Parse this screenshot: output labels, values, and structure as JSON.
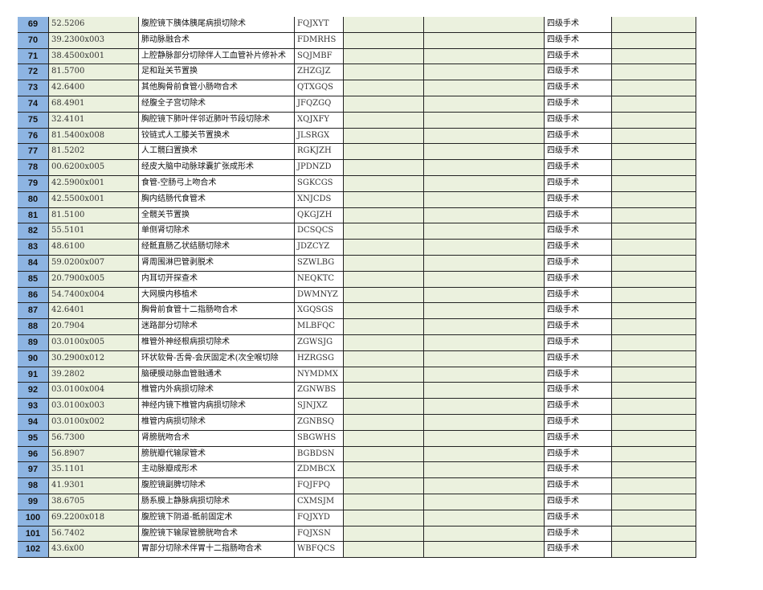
{
  "table": {
    "rows": [
      [
        "69",
        "52.5206",
        "腹腔镜下胰体胰尾病损切除术",
        "FQJXYT",
        "四级手术"
      ],
      [
        "70",
        "39.2300x003",
        "肺动脉融合术",
        "FDMRHS",
        "四级手术"
      ],
      [
        "71",
        "38.4500x001",
        "上腔静脉部分切除伴人工血管补片修补术",
        "SQJMBF",
        "四级手术"
      ],
      [
        "72",
        "81.5700",
        "足和趾关节置换",
        "ZHZGJZ",
        "四级手术"
      ],
      [
        "73",
        "42.6400",
        "其他胸骨前食管小肠吻合术",
        "QTXGQS",
        "四级手术"
      ],
      [
        "74",
        "68.4901",
        "经腹全子宫切除术",
        "JFQZGQ",
        "四级手术"
      ],
      [
        "75",
        "32.4101",
        "胸腔镜下肺叶伴邻近肺叶节段切除术",
        "XQJXFY",
        "四级手术"
      ],
      [
        "76",
        "81.5400x008",
        "铰链式人工膝关节置换术",
        "JLSRGX",
        "四级手术"
      ],
      [
        "77",
        "81.5202",
        "人工髋臼置换术",
        "RGKJZH",
        "四级手术"
      ],
      [
        "78",
        "00.6200x005",
        "经皮大脑中动脉球囊扩张成形术",
        "JPDNZD",
        "四级手术"
      ],
      [
        "79",
        "42.5900x001",
        "食管-空肠弓上吻合术",
        "SGKCGS",
        "四级手术"
      ],
      [
        "80",
        "42.5500x001",
        "胸内结肠代食管术",
        "XNJCDS",
        "四级手术"
      ],
      [
        "81",
        "81.5100",
        "全髋关节置换",
        "QKGJZH",
        "四级手术"
      ],
      [
        "82",
        "55.5101",
        "单侧肾切除术",
        "DCSQCS",
        "四级手术"
      ],
      [
        "83",
        "48.6100",
        "经骶直肠乙状结肠切除术",
        "JDZCYZ",
        "四级手术"
      ],
      [
        "84",
        "59.0200x007",
        "肾周围淋巴管剥脱术",
        "SZWLBG",
        "四级手术"
      ],
      [
        "85",
        "20.7900x005",
        "内耳切开探查术",
        "NEQKTC",
        "四级手术"
      ],
      [
        "86",
        "54.7400x004",
        "大网膜内移植术",
        "DWMNYZ",
        "四级手术"
      ],
      [
        "87",
        "42.6401",
        "胸骨前食管十二指肠吻合术",
        "XGQSGS",
        "四级手术"
      ],
      [
        "88",
        "20.7904",
        "迷路部分切除术",
        "MLBFQC",
        "四级手术"
      ],
      [
        "89",
        "03.0100x005",
        "椎管外神经根病损切除术",
        "ZGWSJG",
        "四级手术"
      ],
      [
        "90",
        "30.2900x012",
        "环状软骨-舌骨-会厌固定术(次全喉切除",
        "HZRGSG",
        "四级手术"
      ],
      [
        "91",
        "39.2802",
        "脑硬膜动脉血管融通术",
        "NYMDMX",
        "四级手术"
      ],
      [
        "92",
        "03.0100x004",
        "椎管内外病损切除术",
        "ZGNWBS",
        "四级手术"
      ],
      [
        "93",
        "03.0100x003",
        "神经内镜下椎管内病损切除术",
        "SJNJXZ",
        "四级手术"
      ],
      [
        "94",
        "03.0100x002",
        "椎管内病损切除术",
        "ZGNBSQ",
        "四级手术"
      ],
      [
        "95",
        "56.7300",
        "肾膀胱吻合术",
        "SBGWHS",
        "四级手术"
      ],
      [
        "96",
        "56.8907",
        "膀胱瓣代输尿管术",
        "BGBDSN",
        "四级手术"
      ],
      [
        "97",
        "35.1101",
        "主动脉瓣成形术",
        "ZDMBCX",
        "四级手术"
      ],
      [
        "98",
        "41.9301",
        "腹腔镜副脾切除术",
        "FQJFPQ",
        "四级手术"
      ],
      [
        "99",
        "38.6705",
        "肠系膜上静脉病损切除术",
        "CXMSJM",
        "四级手术"
      ],
      [
        "100",
        "69.2200x018",
        "腹腔镜下阴道-骶前固定术",
        "FQJXYD",
        "四级手术"
      ],
      [
        "101",
        "56.7402",
        "腹腔镜下输尿管膀胱吻合术",
        "FQJXSN",
        "四级手术"
      ],
      [
        "102",
        "43.6x00",
        "胃部分切除术伴胃十二指肠吻合术",
        "WBFQCS",
        "四级手术"
      ]
    ]
  }
}
